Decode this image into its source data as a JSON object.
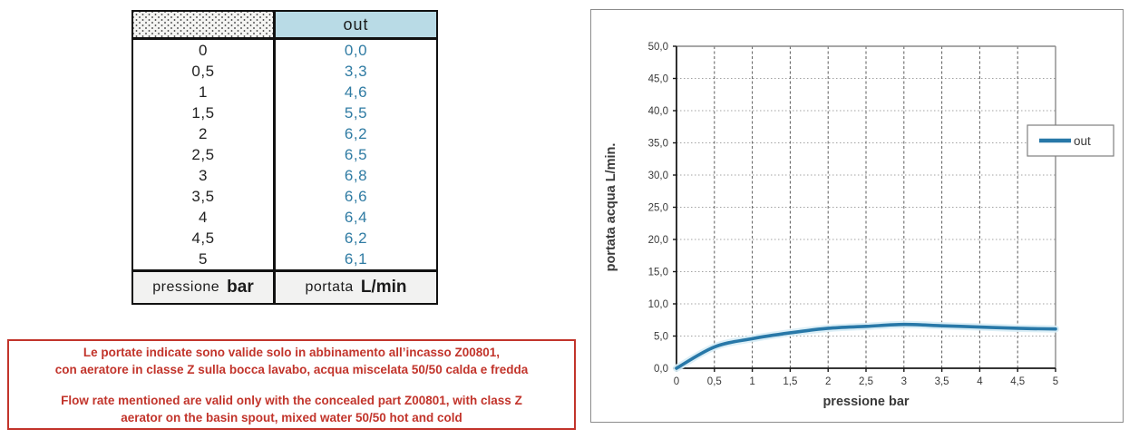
{
  "table": {
    "header": {
      "out": "out"
    },
    "rows": [
      {
        "pressione": "0",
        "portata": "0,0"
      },
      {
        "pressione": "0,5",
        "portata": "3,3"
      },
      {
        "pressione": "1",
        "portata": "4,6"
      },
      {
        "pressione": "1,5",
        "portata": "5,5"
      },
      {
        "pressione": "2",
        "portata": "6,2"
      },
      {
        "pressione": "2,5",
        "portata": "6,5"
      },
      {
        "pressione": "3",
        "portata": "6,8"
      },
      {
        "pressione": "3,5",
        "portata": "6,6"
      },
      {
        "pressione": "4",
        "portata": "6,4"
      },
      {
        "pressione": "4,5",
        "portata": "6,2"
      },
      {
        "pressione": "5",
        "portata": "6,1"
      }
    ],
    "footer": {
      "left_label": "pressione",
      "left_unit": "bar",
      "right_label": "portata",
      "right_unit": "L/min"
    }
  },
  "note": {
    "lines": [
      "Le portate indicate sono valide solo in abbinamento all’incasso Z00801,",
      "con aeratore in classe Z sulla bocca lavabo, acqua miscelata 50/50 calda e fredda",
      "Flow rate mentioned are valid only with the concealed part Z00801, with class Z",
      "aerator on the basin spout, mixed water 50/50 hot and cold"
    ]
  },
  "chart_data": {
    "type": "line",
    "title": "",
    "xlabel": "pressione bar",
    "ylabel": "portata acqua  L/min.",
    "x": [
      0,
      0.5,
      1,
      1.5,
      2,
      2.5,
      3,
      3.5,
      4,
      4.5,
      5
    ],
    "series": [
      {
        "name": "out",
        "values": [
          0.0,
          3.3,
          4.6,
          5.5,
          6.2,
          6.5,
          6.8,
          6.6,
          6.4,
          6.2,
          6.1
        ],
        "color": "#2878a8",
        "halo_color": "#d8edf6"
      }
    ],
    "xlim": [
      0,
      5
    ],
    "ylim": [
      0,
      50
    ],
    "x_ticks": [
      0,
      0.5,
      1,
      1.5,
      2,
      2.5,
      3,
      3.5,
      4,
      4.5,
      5
    ],
    "x_tick_labels": [
      "0",
      "0,5",
      "1",
      "1,5",
      "2",
      "2,5",
      "3",
      "3,5",
      "4",
      "4,5",
      "5"
    ],
    "y_ticks": [
      0,
      5,
      10,
      15,
      20,
      25,
      30,
      35,
      40,
      45,
      50
    ],
    "y_tick_labels": [
      "0,0",
      "5,0",
      "10,0",
      "15,0",
      "20,0",
      "25,0",
      "30,0",
      "35,0",
      "40,0",
      "45,0",
      "50,0"
    ],
    "grid": true,
    "legend_position": "right",
    "legend_label": "out"
  },
  "colors": {
    "value_blue": "#2f7ba3",
    "curve_blue": "#2878a8",
    "note_red": "#c2342b",
    "out_header_bg": "#b9dbe6"
  }
}
